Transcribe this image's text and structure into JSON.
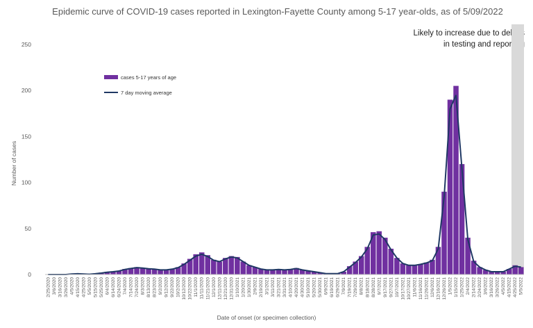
{
  "chart_data": {
    "type": "bar",
    "title": "Epidemic curve of COVID-19 cases reported in Lexington-Fayette County among 5-17 year-olds, as of 5/09/2022",
    "xlabel": "Date of onset (or specimen collection)",
    "ylabel": "Number of cases",
    "ylim": [
      0,
      250
    ],
    "yticks": [
      0,
      50,
      100,
      150,
      200,
      250
    ],
    "annotation": "Likely to increase due to delays in testing and reporting",
    "legend_position": "top-left",
    "colors": {
      "bars": "#7030a0",
      "line": "#1f3864",
      "shade": "#d9d9d9"
    },
    "x_tick_labels": [
      "2/25/2020",
      "3/6/2020",
      "3/16/2020",
      "3/26/2020",
      "4/5/2020",
      "4/15/2020",
      "4/25/2020",
      "5/5/2020",
      "5/15/2020",
      "5/25/2020",
      "6/4/2020",
      "6/14/2020",
      "6/24/2020",
      "7/4/2020",
      "7/14/2020",
      "7/24/2020",
      "8/3/2020",
      "8/13/2020",
      "8/23/2020",
      "9/2/2020",
      "9/12/2020",
      "9/22/2020",
      "10/2/2020",
      "10/12/2020",
      "10/22/2020",
      "11/1/2020",
      "11/11/2020",
      "11/21/2020",
      "12/1/2020",
      "12/11/2020",
      "12/21/2020",
      "12/31/2020",
      "1/10/2021",
      "1/20/2021",
      "1/30/2021",
      "2/9/2021",
      "2/19/2021",
      "3/1/2021",
      "3/11/2021",
      "3/21/2021",
      "3/31/2021",
      "4/10/2021",
      "4/20/2021",
      "4/30/2021",
      "5/10/2021",
      "5/20/2021",
      "5/30/2021",
      "6/9/2021",
      "6/19/2021",
      "6/29/2021",
      "7/9/2021",
      "7/19/2021",
      "7/29/2021",
      "8/8/2021",
      "8/18/2021",
      "8/28/2021",
      "9/7/2021",
      "9/17/2021",
      "9/27/2021",
      "10/7/2021",
      "10/17/2021",
      "10/27/2021",
      "11/6/2021",
      "11/16/2021",
      "11/26/2021",
      "12/6/2021",
      "12/16/2021",
      "12/26/2021",
      "1/5/2022",
      "1/15/2022",
      "1/25/2022",
      "2/4/2022",
      "2/14/2022",
      "2/24/2022",
      "3/6/2022",
      "3/16/2022",
      "3/26/2022",
      "4/5/2022",
      "4/15/2022",
      "4/25/2022",
      "5/5/2022"
    ],
    "x": [
      "2/25/2020",
      "3/6/2020",
      "3/16/2020",
      "3/26/2020",
      "4/5/2020",
      "4/15/2020",
      "4/25/2020",
      "5/5/2020",
      "5/15/2020",
      "5/25/2020",
      "6/4/2020",
      "6/14/2020",
      "6/24/2020",
      "7/4/2020",
      "7/14/2020",
      "7/24/2020",
      "8/3/2020",
      "8/13/2020",
      "8/23/2020",
      "9/2/2020",
      "9/12/2020",
      "9/22/2020",
      "10/2/2020",
      "10/12/2020",
      "10/22/2020",
      "11/1/2020",
      "11/11/2020",
      "11/21/2020",
      "12/1/2020",
      "12/11/2020",
      "12/21/2020",
      "12/31/2020",
      "1/10/2021",
      "1/20/2021",
      "1/30/2021",
      "2/9/2021",
      "2/19/2021",
      "3/1/2021",
      "3/11/2021",
      "3/21/2021",
      "3/31/2021",
      "4/10/2021",
      "4/20/2021",
      "4/30/2021",
      "5/10/2021",
      "5/20/2021",
      "5/30/2021",
      "6/9/2021",
      "6/19/2021",
      "6/29/2021",
      "7/9/2021",
      "7/19/2021",
      "7/29/2021",
      "8/8/2021",
      "8/18/2021",
      "8/28/2021",
      "9/7/2021",
      "9/17/2021",
      "9/27/2021",
      "10/7/2021",
      "10/17/2021",
      "10/27/2021",
      "11/6/2021",
      "11/16/2021",
      "11/26/2021",
      "12/6/2021",
      "12/16/2021",
      "12/26/2021",
      "1/5/2022",
      "1/15/2022",
      "1/25/2022",
      "2/4/2022",
      "2/14/2022",
      "2/24/2022",
      "3/6/2022",
      "3/16/2022",
      "3/26/2022",
      "4/5/2022",
      "4/15/2022",
      "4/25/2022",
      "5/5/2022"
    ],
    "series": [
      {
        "name": "cases 5-17 years of age",
        "type": "bar",
        "values": [
          0,
          0,
          0,
          0,
          1,
          1,
          0,
          0,
          1,
          2,
          3,
          3,
          4,
          6,
          7,
          8,
          7,
          6,
          6,
          5,
          5,
          6,
          8,
          12,
          17,
          22,
          24,
          21,
          16,
          14,
          18,
          20,
          19,
          14,
          10,
          8,
          6,
          5,
          5,
          6,
          5,
          6,
          7,
          5,
          4,
          3,
          2,
          1,
          1,
          1,
          3,
          9,
          14,
          20,
          30,
          46,
          47,
          40,
          28,
          18,
          12,
          10,
          10,
          11,
          13,
          16,
          30,
          90,
          190,
          205,
          120,
          40,
          15,
          8,
          5,
          3,
          3,
          3,
          6,
          10,
          8
        ]
      },
      {
        "name": "7 day moving average",
        "type": "line",
        "values": [
          0,
          0,
          0,
          0,
          0.5,
          0.8,
          0.5,
          0.3,
          0.8,
          1.5,
          2.5,
          3,
          3.8,
          5.5,
          6.5,
          7.5,
          7,
          6.2,
          5.8,
          5,
          5,
          5.8,
          7.5,
          11,
          15.5,
          20,
          22,
          19.5,
          15.5,
          14,
          17,
          19,
          18,
          14,
          10,
          8,
          6,
          5,
          5,
          5.5,
          5,
          5.5,
          6.5,
          5,
          4,
          3,
          2,
          1,
          1,
          1,
          3,
          8,
          13,
          19,
          28,
          43,
          44,
          38,
          27,
          18,
          12,
          10,
          10,
          11,
          12.5,
          15,
          28,
          85,
          180,
          195,
          115,
          38,
          14,
          8,
          5,
          3,
          3,
          3,
          6,
          9,
          8
        ]
      }
    ]
  }
}
